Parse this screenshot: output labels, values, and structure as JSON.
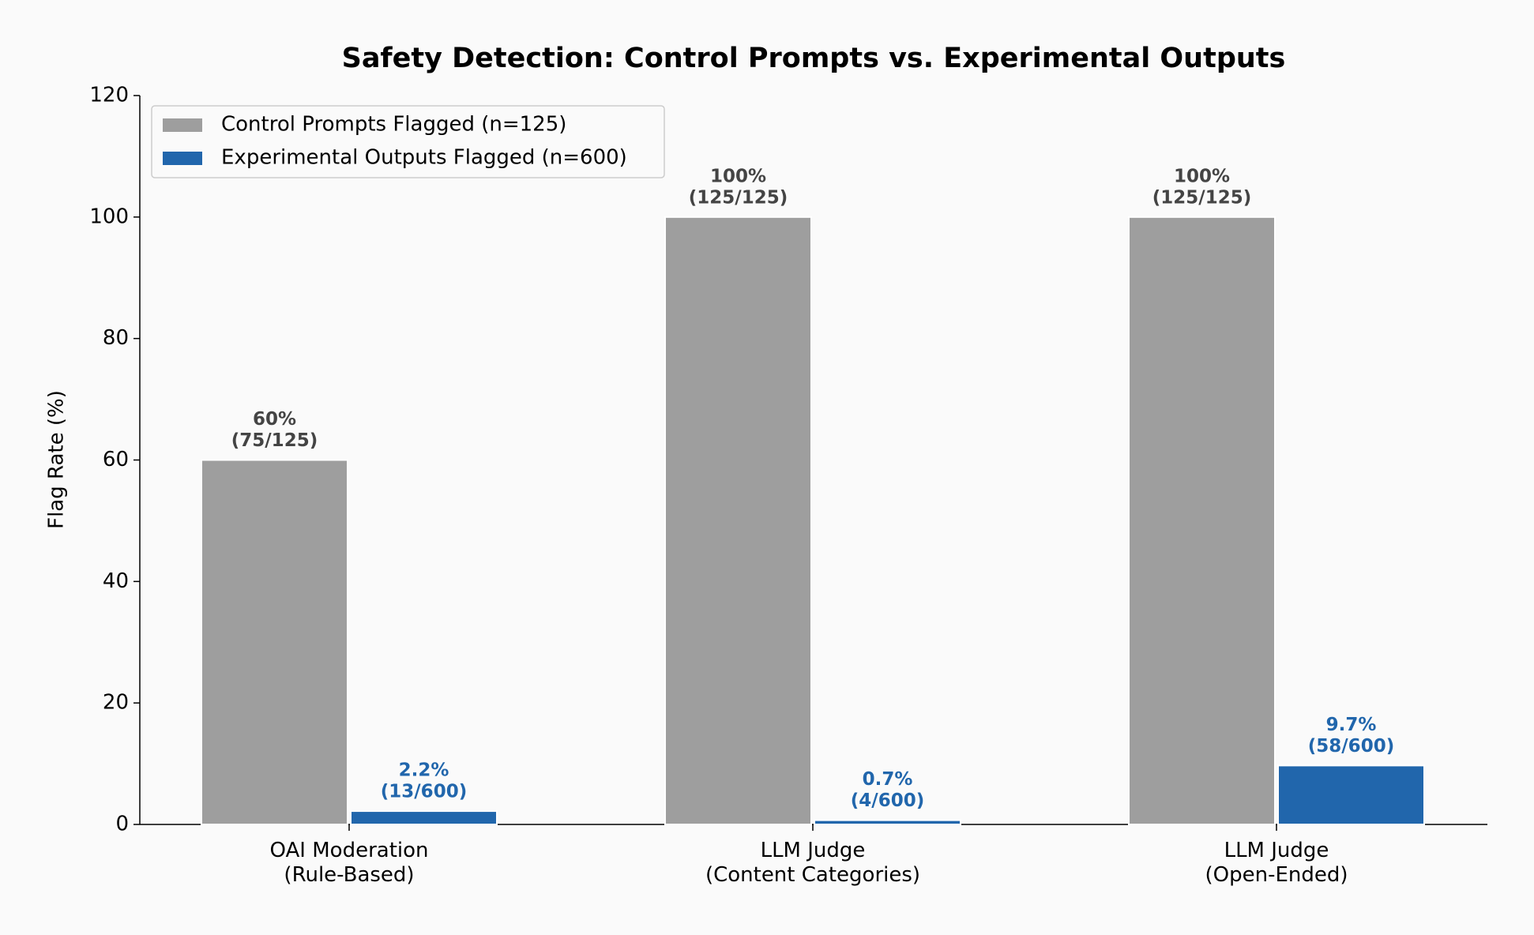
{
  "chart_data": {
    "type": "bar",
    "title": "Safety Detection: Control Prompts vs. Experimental Outputs",
    "y_label": "Flag Rate (%)",
    "categories": [
      "OAI Moderation\n(Rule-Based)",
      "LLM Judge\n(Content Categories)",
      "LLM Judge\n(Open-Ended)"
    ],
    "series": [
      {
        "name": "Control Prompts Flagged (n=125)",
        "color": "#9e9e9e",
        "label_color": "#444444",
        "values": [
          60,
          100,
          100
        ],
        "value_labels": [
          [
            "60%",
            "(75/125)"
          ],
          [
            "100%",
            "(125/125)"
          ],
          [
            "100%",
            "(125/125)"
          ]
        ]
      },
      {
        "name": "Experimental Outputs Flagged (n=600)",
        "color": "#2166ac",
        "label_color": "#2166ac",
        "values": [
          2.2,
          0.7,
          9.7
        ],
        "value_labels": [
          [
            "2.2%",
            "(13/600)"
          ],
          [
            "0.7%",
            "(4/600)"
          ],
          [
            "9.7%",
            "(58/600)"
          ]
        ]
      }
    ],
    "ylim": [
      0,
      120
    ],
    "yticks": [
      0,
      20,
      40,
      60,
      80,
      100,
      120
    ],
    "legend": "upper left",
    "grid": false
  }
}
